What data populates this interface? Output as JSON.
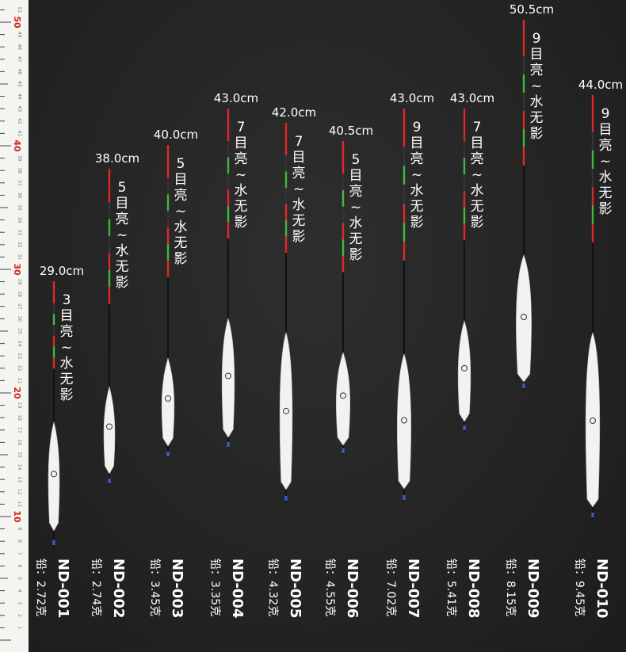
{
  "ruler": {
    "labels": [
      "10",
      "20",
      "30",
      "40",
      "50"
    ],
    "accent": "#d0231b"
  },
  "floats": [
    {
      "code": "ND-001",
      "lead": "铅：2.72克",
      "length": "29.0cm",
      "visibility": "3目亮~水无影"
    },
    {
      "code": "ND-002",
      "lead": "铅：2.74克",
      "length": "38.0cm",
      "visibility": "5目亮~水无影"
    },
    {
      "code": "ND-003",
      "lead": "铅：3.45克",
      "length": "40.0cm",
      "visibility": "5目亮~水无影"
    },
    {
      "code": "ND-004",
      "lead": "铅：3.35克",
      "length": "43.0cm",
      "visibility": "7目亮~水无影"
    },
    {
      "code": "ND-005",
      "lead": "铅：4.32克",
      "length": "42.0cm",
      "visibility": "7目亮~水无影"
    },
    {
      "code": "ND-006",
      "lead": "铅：4.55克",
      "length": "40.5cm",
      "visibility": "5目亮~水无影"
    },
    {
      "code": "ND-007",
      "lead": "铅：7.02克",
      "length": "43.0cm",
      "visibility": "9目亮~水无影"
    },
    {
      "code": "ND-008",
      "lead": "铅：5.41克",
      "length": "43.0cm",
      "visibility": "7目亮~水无影"
    },
    {
      "code": "ND-009",
      "lead": "铅：8.15克",
      "length": "50.5cm",
      "visibility": "9目亮~水无影"
    },
    {
      "code": "ND-010",
      "lead": "铅：9.45克",
      "length": "44.0cm",
      "visibility": "9目亮~水无影"
    }
  ],
  "colors": {
    "red": "#e02828",
    "green": "#3fb93f",
    "orange": "#e88a2a",
    "body": "#f2f2f2"
  }
}
